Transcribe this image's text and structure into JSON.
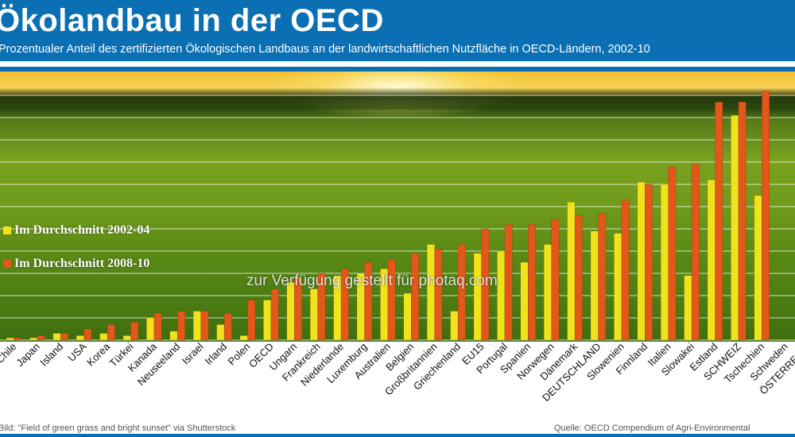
{
  "header": {
    "title": "Ökolandbau in der OECD",
    "subtitle": "Prozentualer Anteil des zertifizierten Ökologischen Landbaus an der landwirtschaftlichen Nutzfläche in OECD-Ländern, 2002-10"
  },
  "footer": {
    "left": "Bild: \"Field of green grass and bright sunset\" via Shutterstock",
    "right": "Quelle: OECD Compendium of Agri-Environmental"
  },
  "watermark": "zur Verfügung gestellt für photaq.com",
  "colors": {
    "series1": "#f2e21c",
    "series2": "#e2571a",
    "grid": "#ffffff"
  },
  "chart_data": {
    "type": "bar",
    "categories": [
      "Chile",
      "Japan",
      "Island",
      "USA",
      "Korea",
      "Türkei",
      "Kanada",
      "Neuseeland",
      "Israel",
      "Irland",
      "Polen",
      "OECD",
      "Ungarn",
      "Frankreich",
      "Niederlande",
      "Luxemburg",
      "Australien",
      "Belgien",
      "Großbritannien",
      "Griechenland",
      "EU15",
      "Portugal",
      "Spanien",
      "Norwegen",
      "Dänemark",
      "DEUTSCHLAND",
      "Slowenien",
      "Finnland",
      "Italien",
      "Slowakei",
      "Estland",
      "SCHWEIZ",
      "Tschechien",
      "Schweden",
      "ÖSTERREICH"
    ],
    "series": [
      {
        "name": "Im Durchschnitt 2002-04",
        "values": [
          0.1,
          0.1,
          0.3,
          0.2,
          0.3,
          0.2,
          1.0,
          0.4,
          1.3,
          0.7,
          0.2,
          1.8,
          2.6,
          2.3,
          2.9,
          3.0,
          3.2,
          2.1,
          4.3,
          1.3,
          3.9,
          4.0,
          3.5,
          4.3,
          6.2,
          4.9,
          4.8,
          7.1,
          7.0,
          2.9,
          7.2,
          10.1,
          6.5,
          null,
          null
        ]
      },
      {
        "name": "Im Durchschnitt 2008-10",
        "values": [
          0.1,
          0.2,
          0.3,
          0.5,
          0.7,
          0.8,
          1.2,
          1.3,
          1.3,
          1.2,
          1.8,
          2.3,
          2.8,
          3.0,
          3.2,
          3.5,
          3.6,
          3.9,
          4.1,
          4.3,
          5.0,
          5.2,
          5.2,
          5.4,
          5.6,
          5.7,
          6.3,
          7.0,
          7.8,
          7.9,
          10.7,
          10.7,
          11.2,
          null,
          null
        ]
      }
    ],
    "ylim": [
      0,
      12
    ]
  }
}
